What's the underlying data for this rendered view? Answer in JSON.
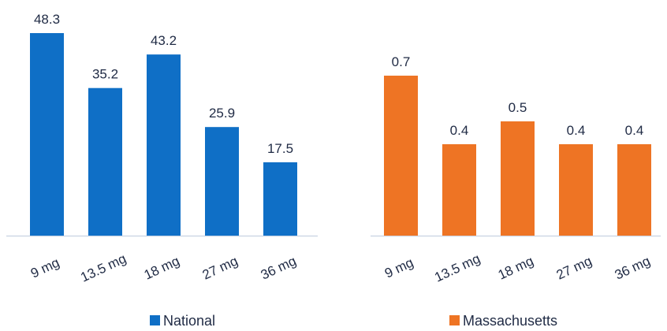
{
  "chart_data": [
    {
      "type": "bar",
      "categories": [
        "9 mg",
        "13.5 mg",
        "18 mg",
        "27 mg",
        "36 mg"
      ],
      "series": [
        {
          "name": "National",
          "values": [
            48.3,
            35.2,
            43.2,
            25.9,
            17.5
          ],
          "color": "#0f6fc6"
        }
      ],
      "ylim": [
        0,
        48.3
      ],
      "grid": false,
      "legend": "bottom"
    },
    {
      "type": "bar",
      "categories": [
        "9 mg",
        "13.5 mg",
        "18 mg",
        "27 mg",
        "36 mg"
      ],
      "series": [
        {
          "name": "Massachusetts",
          "values": [
            0.7,
            0.4,
            0.5,
            0.4,
            0.4
          ],
          "color": "#ee7424"
        }
      ],
      "ylim": [
        0,
        0.7
      ],
      "grid": false,
      "legend": "bottom"
    }
  ]
}
